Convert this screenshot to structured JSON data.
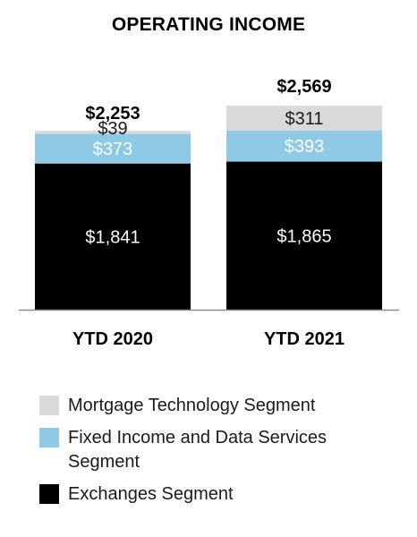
{
  "chart_data": {
    "type": "bar",
    "stacked": true,
    "title": "OPERATING INCOME",
    "categories": [
      "YTD 2020",
      "YTD 2021"
    ],
    "totals": [
      2253,
      2569
    ],
    "total_labels": [
      "$2,253",
      "$2,569"
    ],
    "series": [
      {
        "name": "Exchanges Segment",
        "color": "#000000",
        "label_color": "#ffffff",
        "values": [
          1841,
          1865
        ],
        "labels": [
          "$1,841",
          "$1,865"
        ]
      },
      {
        "name": "Fixed Income and Data Services Segment",
        "color": "#8ecae6",
        "label_color": "#ffffff",
        "values": [
          373,
          393
        ],
        "labels": [
          "$373",
          "$393"
        ]
      },
      {
        "name": "Mortgage Technology Segment",
        "color": "#d9d9d9",
        "label_color": "#1a1a1a",
        "values": [
          39,
          311
        ],
        "labels": [
          "$39",
          "$311"
        ]
      }
    ],
    "legend_order": [
      2,
      1,
      0
    ],
    "legend_position": "bottom",
    "grid": false
  }
}
